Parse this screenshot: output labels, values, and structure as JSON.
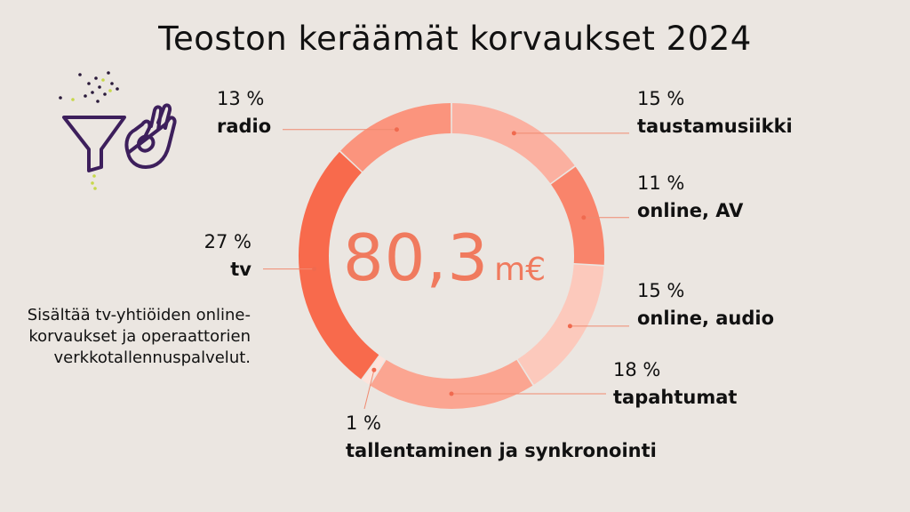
{
  "title": "Teoston keräämät korvaukset 2024",
  "center": {
    "value": "80,3",
    "unit": "m€",
    "color": "#f07a5e"
  },
  "note": "Sisältää tv-yhtiöiden online-korvaukset ja operaattorien verkkotallennuspalvelut.",
  "colors": {
    "background": "#ebe6e1",
    "leader": "#f08a70",
    "dot": "#f06a4f"
  },
  "chart_data": {
    "type": "pie",
    "subtype": "donut",
    "total_label": "80,3 m€",
    "slices": [
      {
        "name": "taustamusiikki",
        "pct_label": "15 %",
        "value": 15,
        "color": "#fbb0a0"
      },
      {
        "name": "online, AV",
        "pct_label": "11 %",
        "value": 11,
        "color": "#f9846b"
      },
      {
        "name": "online, audio",
        "pct_label": "15 %",
        "value": 15,
        "color": "#fcc9bc"
      },
      {
        "name": "tapahtumat",
        "pct_label": "18 %",
        "value": 18,
        "color": "#fba591"
      },
      {
        "name": "tallentaminen ja synkronointi",
        "pct_label": "1 %",
        "value": 1,
        "color": "#fde3db"
      },
      {
        "name": "tv",
        "pct_label": "27 %",
        "value": 27,
        "color": "#f86a4c"
      },
      {
        "name": "radio",
        "pct_label": "13 %",
        "value": 13,
        "color": "#fb947d"
      }
    ]
  }
}
